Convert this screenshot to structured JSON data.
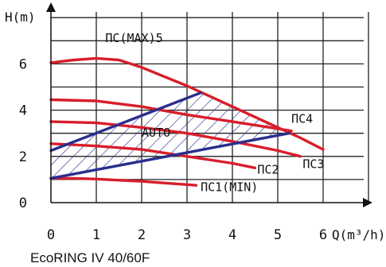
{
  "chart_data": {
    "type": "line",
    "xlabel": "Q(m³/h)",
    "ylabel": "H(m)",
    "caption": "EcoRING IV 40/60F",
    "xlim": [
      0,
      7.05
    ],
    "ylim": [
      0,
      8.6
    ],
    "x_ticks": [
      "0",
      "1",
      "2",
      "3",
      "4",
      "5",
      "6"
    ],
    "y_ticks": [
      "0",
      "2",
      "4",
      "6"
    ],
    "grid": "vertical and horizontal lines",
    "series": [
      {
        "name": "ПС(MAX)5",
        "color": "#d81e2a",
        "x": [
          0,
          0.5,
          1,
          1.5,
          2,
          2.5,
          3,
          3.5,
          4,
          4.5,
          5,
          5.5,
          6
        ],
        "y": [
          6.05,
          6.17,
          6.24,
          6.17,
          5.85,
          5.45,
          5.05,
          4.6,
          4.15,
          3.7,
          3.25,
          2.8,
          2.3
        ]
      },
      {
        "name": "ПС4",
        "color": "#d81e2a",
        "x": [
          0,
          1,
          2,
          3,
          4,
          5,
          5.3
        ],
        "y": [
          4.45,
          4.4,
          4.15,
          3.8,
          3.5,
          3.2,
          3.1
        ]
      },
      {
        "name": "ПС3",
        "color": "#d81e2a",
        "x": [
          0,
          1,
          2,
          3,
          4,
          5,
          5.5
        ],
        "y": [
          3.5,
          3.45,
          3.25,
          3.0,
          2.65,
          2.25,
          2.0
        ]
      },
      {
        "name": "ПС2",
        "color": "#d81e2a",
        "x": [
          0,
          1,
          2,
          3,
          4,
          4.5
        ],
        "y": [
          2.55,
          2.45,
          2.3,
          2.0,
          1.7,
          1.5
        ]
      },
      {
        "name": "ПС1(MIN)",
        "color": "#d81e2a",
        "x": [
          0,
          0.5,
          1,
          1.5,
          2,
          2.5,
          3,
          3.2
        ],
        "y": [
          1.05,
          1.05,
          1.02,
          0.97,
          0.92,
          0.85,
          0.78,
          0.75
        ]
      },
      {
        "name": "",
        "color": "#2a2f8c",
        "x": [
          0,
          3.3
        ],
        "y": [
          2.25,
          4.75
        ]
      },
      {
        "name": "",
        "color": "#2a2f8c",
        "x": [
          0,
          5.25
        ],
        "y": [
          1.05,
          3.0
        ]
      }
    ],
    "region": {
      "label": "AUTO",
      "fill": "hatched",
      "color": "#2a2f8c"
    },
    "labels": [
      {
        "text": "ПС(MAX)5",
        "x": 1.2,
        "y": 6.95
      },
      {
        "text": "ПС4",
        "x": 5.3,
        "y": 3.45
      },
      {
        "text": "AUTO",
        "x": 2.0,
        "y": 2.85
      },
      {
        "text": "ПС2",
        "x": 4.55,
        "y": 1.25
      },
      {
        "text": "ПС3",
        "x": 5.55,
        "y": 1.5
      },
      {
        "text": "ПС1(MIN)",
        "x": 3.3,
        "y": 0.5
      }
    ]
  }
}
